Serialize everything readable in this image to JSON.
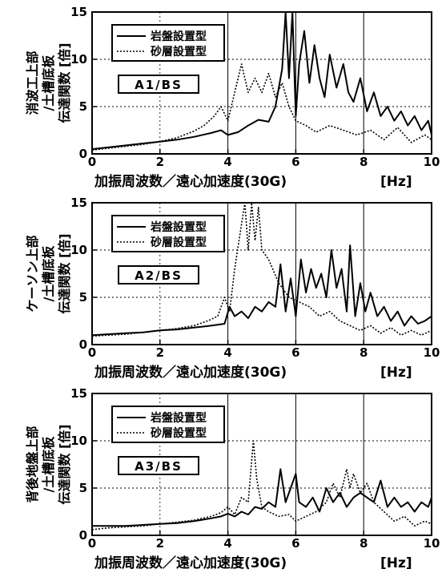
{
  "chart_data": [
    {
      "type": "line",
      "annotation": "A1/BS",
      "ylabel": [
        "消波工上部",
        "/土槽底板",
        "伝達関数 [倍]"
      ],
      "xlabel": "加振周波数／遠心加速度(30G)",
      "xunit": "[Hz]",
      "xlim": [
        0,
        10
      ],
      "ylim": [
        0,
        15
      ],
      "xticks": [
        "0",
        "2",
        "4",
        "6",
        "8",
        "10"
      ],
      "yticks": [
        "0",
        "5",
        "10",
        "15"
      ],
      "grid": true,
      "legend_position": "top-left",
      "series": [
        {
          "name": "岩盤設置型",
          "style": "solid",
          "x": [
            0,
            0.5,
            1,
            1.5,
            2,
            2.5,
            3,
            3.5,
            3.8,
            4,
            4.3,
            4.6,
            4.9,
            5.2,
            5.4,
            5.6,
            5.7,
            5.8,
            5.9,
            6,
            6.1,
            6.25,
            6.4,
            6.55,
            6.7,
            6.85,
            7,
            7.2,
            7.4,
            7.55,
            7.7,
            7.9,
            8.1,
            8.3,
            8.5,
            8.7,
            8.9,
            9.1,
            9.3,
            9.5,
            9.7,
            9.9,
            10
          ],
          "values": [
            0.5,
            0.7,
            0.9,
            1.1,
            1.3,
            1.5,
            1.8,
            2.2,
            2.5,
            2.0,
            2.3,
            3.0,
            3.6,
            3.4,
            5.0,
            9.0,
            15.0,
            8.0,
            15.0,
            4.0,
            9.5,
            13.0,
            7.5,
            11.5,
            8.0,
            6.0,
            10.5,
            7.0,
            9.5,
            6.5,
            5.5,
            8.0,
            4.5,
            6.5,
            4.0,
            5.0,
            3.5,
            4.5,
            3.0,
            4.0,
            2.5,
            3.5,
            2.0
          ]
        },
        {
          "name": "砂層設置型",
          "style": "dotted",
          "x": [
            0,
            0.5,
            1,
            1.5,
            2,
            2.5,
            3,
            3.3,
            3.6,
            3.8,
            4,
            4.2,
            4.4,
            4.6,
            4.8,
            5,
            5.2,
            5.4,
            5.6,
            5.8,
            6,
            6.3,
            6.6,
            7,
            7.4,
            7.8,
            8.2,
            8.6,
            9,
            9.4,
            9.8,
            10
          ],
          "values": [
            0.4,
            0.6,
            0.8,
            1.0,
            1.3,
            1.7,
            2.4,
            3.0,
            4.0,
            5.0,
            3.5,
            6.5,
            9.5,
            6.5,
            8.0,
            6.5,
            8.5,
            6.0,
            7.5,
            5.0,
            3.5,
            3.0,
            2.3,
            3.0,
            2.5,
            2.0,
            2.5,
            1.5,
            2.8,
            1.2,
            2.0,
            1.5
          ]
        }
      ]
    },
    {
      "type": "line",
      "annotation": "A2/BS",
      "ylabel": [
        "ケーソン上部",
        "/土槽底板",
        "伝達関数 [倍]"
      ],
      "xlabel": "加振周波数／遠心加速度(30G)",
      "xunit": "[Hz]",
      "xlim": [
        0,
        10
      ],
      "ylim": [
        0,
        15
      ],
      "xticks": [
        "0",
        "2",
        "4",
        "6",
        "8",
        "10"
      ],
      "yticks": [
        "0",
        "5",
        "10",
        "15"
      ],
      "grid": true,
      "legend_position": "top-left",
      "series": [
        {
          "name": "岩盤設置型",
          "style": "solid",
          "x": [
            0,
            0.5,
            1,
            1.5,
            2,
            2.5,
            3,
            3.5,
            3.9,
            4.05,
            4.2,
            4.4,
            4.6,
            4.8,
            5,
            5.2,
            5.4,
            5.55,
            5.7,
            5.85,
            6,
            6.15,
            6.3,
            6.45,
            6.6,
            6.75,
            6.9,
            7.05,
            7.2,
            7.35,
            7.5,
            7.6,
            7.75,
            7.9,
            8.05,
            8.2,
            8.4,
            8.6,
            8.8,
            9,
            9.2,
            9.4,
            9.6,
            9.8,
            10
          ],
          "values": [
            1.0,
            1.1,
            1.2,
            1.3,
            1.5,
            1.6,
            1.8,
            2.0,
            2.2,
            4.0,
            3.0,
            3.5,
            2.8,
            4.0,
            3.5,
            4.5,
            4.0,
            8.5,
            3.5,
            7.0,
            3.0,
            9.0,
            5.5,
            8.0,
            6.0,
            7.5,
            5.0,
            10.0,
            6.0,
            8.0,
            3.5,
            10.5,
            3.0,
            6.5,
            3.5,
            5.5,
            3.0,
            4.0,
            2.5,
            3.5,
            2.0,
            3.0,
            2.2,
            2.5,
            3.0
          ]
        },
        {
          "name": "砂層設置型",
          "style": "dotted",
          "x": [
            0,
            0.5,
            1,
            1.5,
            2,
            2.5,
            3,
            3.4,
            3.7,
            3.9,
            4.05,
            4.2,
            4.35,
            4.5,
            4.6,
            4.7,
            4.8,
            4.9,
            5,
            5.2,
            5.5,
            5.8,
            6.1,
            6.4,
            6.7,
            7,
            7.3,
            7.6,
            7.9,
            8.2,
            8.5,
            8.8,
            9.1,
            9.4,
            9.7,
            10
          ],
          "values": [
            0.9,
            1.0,
            1.1,
            1.3,
            1.5,
            1.7,
            2.0,
            2.5,
            3.0,
            5.0,
            3.5,
            8.0,
            11.5,
            15.0,
            10.0,
            15.0,
            11.0,
            14.5,
            10.0,
            9.0,
            6.5,
            5.0,
            4.5,
            4.0,
            3.0,
            3.5,
            2.5,
            2.0,
            1.5,
            2.0,
            1.2,
            1.8,
            1.0,
            1.5,
            1.0,
            1.5
          ]
        }
      ]
    },
    {
      "type": "line",
      "annotation": "A3/BS",
      "ylabel": [
        "背後地盤上部",
        "/土槽底板",
        "伝達関数 [倍]"
      ],
      "xlabel": "加振周波数／遠心加速度(30G)",
      "xunit": "[Hz]",
      "xlim": [
        0,
        10
      ],
      "ylim": [
        0,
        15
      ],
      "xticks": [
        "0",
        "2",
        "4",
        "6",
        "8",
        "10"
      ],
      "yticks": [
        "0",
        "5",
        "10",
        "15"
      ],
      "grid": true,
      "legend_position": "top-left",
      "series": [
        {
          "name": "岩盤設置型",
          "style": "solid",
          "x": [
            0,
            0.5,
            1,
            1.5,
            2,
            2.5,
            3,
            3.5,
            3.8,
            4,
            4.2,
            4.4,
            4.6,
            4.8,
            5,
            5.2,
            5.4,
            5.55,
            5.7,
            5.85,
            6,
            6.1,
            6.3,
            6.5,
            6.7,
            6.9,
            7.1,
            7.3,
            7.5,
            7.7,
            7.9,
            8.1,
            8.3,
            8.5,
            8.7,
            8.9,
            9.1,
            9.3,
            9.5,
            9.7,
            9.9,
            10
          ],
          "values": [
            1.0,
            1.0,
            1.0,
            1.1,
            1.2,
            1.3,
            1.5,
            1.8,
            2.0,
            2.3,
            2.0,
            2.5,
            2.2,
            3.0,
            2.8,
            3.5,
            3.0,
            7.0,
            3.5,
            5.0,
            6.5,
            3.5,
            3.0,
            4.0,
            2.5,
            5.0,
            3.5,
            4.5,
            3.0,
            4.0,
            4.5,
            4.0,
            3.5,
            5.8,
            3.0,
            4.0,
            3.0,
            3.5,
            2.5,
            3.5,
            3.0,
            4.0
          ]
        },
        {
          "name": "砂層設置型",
          "style": "dotted",
          "x": [
            0,
            0.5,
            1,
            1.5,
            2,
            2.5,
            3,
            3.5,
            3.8,
            4.0,
            4.2,
            4.4,
            4.6,
            4.75,
            4.85,
            5.0,
            5.2,
            5.5,
            5.8,
            6.0,
            6.3,
            6.6,
            6.9,
            7.1,
            7.3,
            7.5,
            7.6,
            7.7,
            7.9,
            8.1,
            8.3,
            8.6,
            8.9,
            9.2,
            9.5,
            9.8,
            10
          ],
          "values": [
            0.6,
            0.8,
            0.9,
            1.0,
            1.2,
            1.4,
            1.6,
            2.0,
            2.4,
            3.0,
            2.2,
            4.0,
            3.5,
            10.0,
            6.0,
            3.0,
            2.5,
            2.0,
            2.2,
            1.5,
            2.0,
            2.5,
            3.5,
            5.5,
            4.0,
            7.0,
            5.0,
            6.5,
            4.5,
            5.5,
            3.5,
            2.5,
            1.5,
            2.0,
            1.0,
            1.5,
            1.2
          ]
        }
      ]
    }
  ]
}
